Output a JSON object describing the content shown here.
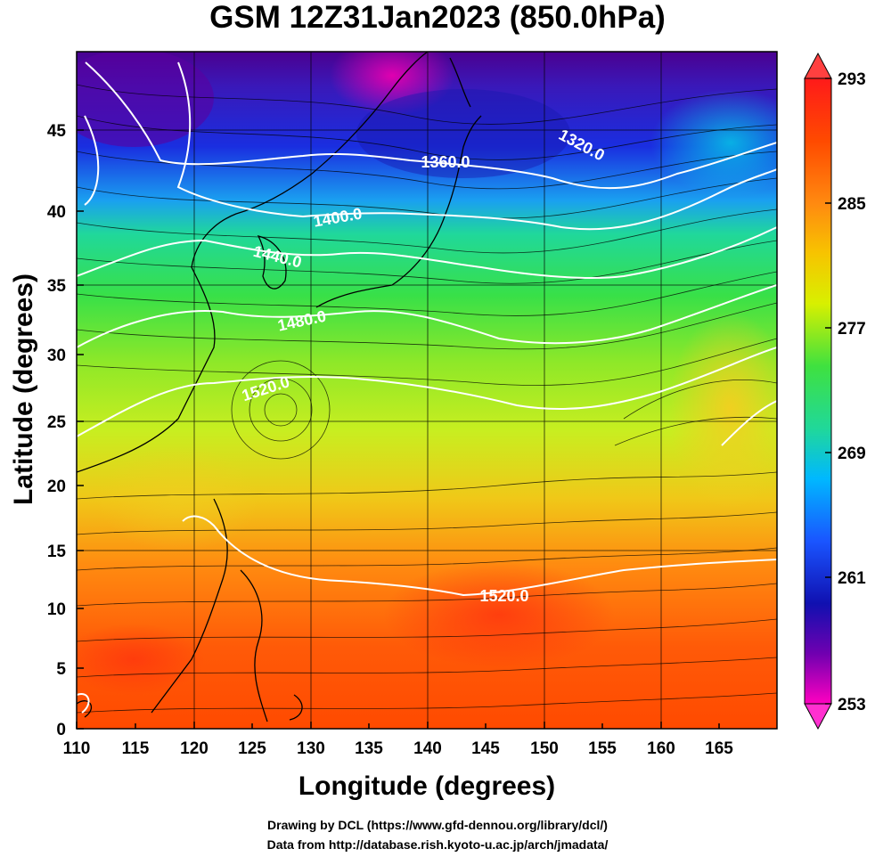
{
  "title": "GSM 12Z31Jan2023 (850.0hPa)",
  "axes": {
    "xlabel": "Longitude (degrees)",
    "ylabel": "Latitude  (degrees)",
    "xlim": [
      110,
      170
    ],
    "ylim": [
      0,
      50
    ],
    "xticks": [
      "110",
      "115",
      "120",
      "125",
      "130",
      "135",
      "140",
      "145",
      "150",
      "155",
      "160",
      "165"
    ],
    "yticks": [
      "0",
      "5",
      "10",
      "15",
      "20",
      "25",
      "30",
      "35",
      "40",
      "45"
    ]
  },
  "colorbar": {
    "range": [
      253,
      293
    ],
    "tick_labels": [
      "293",
      "285",
      "277",
      "269",
      "261",
      "253"
    ],
    "colors": [
      "#ff1a1a",
      "#ff6a00",
      "#f7c400",
      "#d8f000",
      "#3fe13f",
      "#00e0c0",
      "#00b8ff",
      "#1a55ff",
      "#1010b0",
      "#7000b0",
      "#ff00c0"
    ]
  },
  "contour_labels": [
    "1320.0",
    "1360.0",
    "1400.0",
    "1440.0",
    "1480.0",
    "1520.0",
    "1520.0"
  ],
  "credits": {
    "line1": "Drawing by DCL (https://www.gfd-dennou.org/library/dcl/)",
    "line2": "Data from http://database.rish.kyoto-u.ac.jp/arch/jmadata/"
  }
}
